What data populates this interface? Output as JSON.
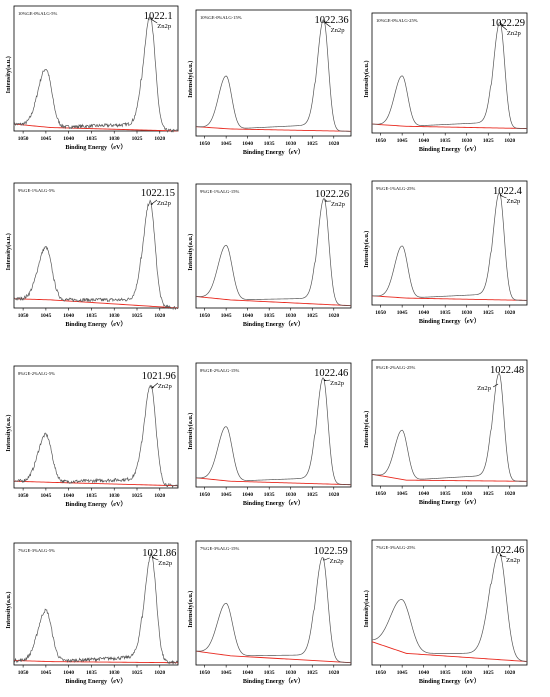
{
  "chart_data": [
    {
      "type": "line",
      "title": "10%GE-0%ALG-5%",
      "xlabel": "Binding Energy（eV）",
      "ylabel": "Intensity(a.u.)",
      "xlim": [
        1052,
        1016
      ],
      "x_reversed": true,
      "x_ticks": [
        1050,
        1045,
        1040,
        1035,
        1030,
        1025,
        1020
      ],
      "peak_label": "Zn2p",
      "peak_value_label": "1022.1",
      "series": [
        {
          "peaks": [
            {
              "center": 1045,
              "height": 0.5,
              "width": 1.3
            },
            {
              "center": 1022.1,
              "height": 0.98,
              "width": 1.1
            }
          ],
          "baseline": [
            [
              1052,
              0.06
            ],
            [
              1044,
              0.03
            ],
            [
              1016,
              0.0
            ]
          ],
          "noise": 0.03
        }
      ],
      "line_colors": [
        "#555555",
        "#e8281e"
      ]
    },
    {
      "type": "line",
      "title": "10%GE-0%ALG-15%",
      "xlabel": "Binding Energy（eV）",
      "ylabel": "Intensity(a.u.)",
      "xlim": [
        1052,
        1016
      ],
      "x_reversed": true,
      "x_ticks": [
        1050,
        1045,
        1040,
        1035,
        1030,
        1025,
        1020
      ],
      "peak_label": "Zn2p",
      "peak_value_label": "1022.36",
      "series": [
        {
          "peaks": [
            {
              "center": 1045,
              "height": 0.45,
              "width": 1.3
            },
            {
              "center": 1022.36,
              "height": 0.95,
              "width": 1.1
            }
          ],
          "baseline": [
            [
              1052,
              0.08
            ],
            [
              1044,
              0.06
            ],
            [
              1016,
              0.04
            ]
          ],
          "noise": 0.0
        }
      ],
      "line_colors": [
        "#555555",
        "#e8281e"
      ]
    },
    {
      "type": "line",
      "title": "10%GE-0%ALG-25%",
      "xlabel": "Binding Energy（eV）",
      "ylabel": "Intensity(a.u.)",
      "xlim": [
        1052,
        1016
      ],
      "x_reversed": true,
      "x_ticks": [
        1050,
        1045,
        1040,
        1035,
        1030,
        1025,
        1020
      ],
      "peak_label": "Zn2p",
      "peak_value_label": "1022.29",
      "series": [
        {
          "peaks": [
            {
              "center": 1045,
              "height": 0.45,
              "width": 1.3
            },
            {
              "center": 1022.29,
              "height": 0.95,
              "width": 1.1
            }
          ],
          "baseline": [
            [
              1052,
              0.08
            ],
            [
              1044,
              0.06
            ],
            [
              1016,
              0.04
            ]
          ],
          "noise": 0.0
        }
      ],
      "line_colors": [
        "#555555",
        "#e8281e"
      ]
    },
    {
      "type": "line",
      "title": "9%GE-1%ALG-5%",
      "xlabel": "Binding Energy（eV）",
      "ylabel": "Intensity(a.u.)",
      "xlim": [
        1052,
        1016
      ],
      "x_reversed": true,
      "x_ticks": [
        1050,
        1045,
        1040,
        1035,
        1030,
        1025,
        1020
      ],
      "peak_label": "Zn2p",
      "peak_value_label": "1022.15",
      "series": [
        {
          "peaks": [
            {
              "center": 1045,
              "height": 0.45,
              "width": 1.3
            },
            {
              "center": 1022.15,
              "height": 0.9,
              "width": 1.1
            }
          ],
          "baseline": [
            [
              1052,
              0.08
            ],
            [
              1044,
              0.07
            ],
            [
              1016,
              0.0
            ]
          ],
          "noise": 0.03
        }
      ],
      "line_colors": [
        "#555555",
        "#e8281e"
      ]
    },
    {
      "type": "line",
      "title": "9%GE-1%ALG-15%",
      "xlabel": "Binding Energy（eV）",
      "ylabel": "Intensity(a.u.)",
      "xlim": [
        1052,
        1016
      ],
      "x_reversed": true,
      "x_ticks": [
        1050,
        1045,
        1040,
        1035,
        1030,
        1025,
        1020
      ],
      "peak_label": "Zn2p",
      "peak_value_label": "1022.26",
      "series": [
        {
          "peaks": [
            {
              "center": 1045,
              "height": 0.47,
              "width": 1.4
            },
            {
              "center": 1022.26,
              "height": 0.92,
              "width": 1.1
            }
          ],
          "baseline": [
            [
              1052,
              0.1
            ],
            [
              1044,
              0.07
            ],
            [
              1016,
              0.02
            ]
          ],
          "noise": 0.0
        }
      ],
      "line_colors": [
        "#555555",
        "#e8281e"
      ]
    },
    {
      "type": "line",
      "title": "9%GE-1%ALG-25%",
      "xlabel": "Binding Energy（eV）",
      "ylabel": "Intensity(a.u.)",
      "xlim": [
        1052,
        1016
      ],
      "x_reversed": true,
      "x_ticks": [
        1050,
        1045,
        1040,
        1035,
        1030,
        1025,
        1020
      ],
      "peak_label": "Zn2p",
      "peak_value_label": "1022.4",
      "series": [
        {
          "peaks": [
            {
              "center": 1045,
              "height": 0.45,
              "width": 1.3
            },
            {
              "center": 1022.4,
              "height": 0.93,
              "width": 1.1
            }
          ],
          "baseline": [
            [
              1052,
              0.08
            ],
            [
              1044,
              0.06
            ],
            [
              1016,
              0.04
            ]
          ],
          "noise": 0.0
        }
      ],
      "line_colors": [
        "#555555",
        "#e8281e"
      ]
    },
    {
      "type": "line",
      "title": "8%GE-2%ALG-5%",
      "xlabel": "Binding Energy（eV）",
      "ylabel": "Intensity(a.u.)",
      "xlim": [
        1052,
        1016
      ],
      "x_reversed": true,
      "x_ticks": [
        1050,
        1045,
        1040,
        1035,
        1030,
        1025,
        1020
      ],
      "peak_label": "Zn2p",
      "peak_value_label": "1021.96",
      "series": [
        {
          "peaks": [
            {
              "center": 1045,
              "height": 0.42,
              "width": 1.3
            },
            {
              "center": 1021.96,
              "height": 0.88,
              "width": 1.1
            }
          ],
          "baseline": [
            [
              1052,
              0.06
            ],
            [
              1044,
              0.05
            ],
            [
              1016,
              0.02
            ]
          ],
          "noise": 0.03
        }
      ],
      "line_colors": [
        "#555555",
        "#e8281e"
      ]
    },
    {
      "type": "line",
      "title": "8%GE-2%ALG-15%",
      "xlabel": "Binding Energy（eV）",
      "ylabel": "Intensity(a.u.)",
      "xlim": [
        1052,
        1016
      ],
      "x_reversed": true,
      "x_ticks": [
        1050,
        1045,
        1040,
        1035,
        1030,
        1025,
        1020
      ],
      "peak_label": "Zn2p",
      "peak_value_label": "1022.46",
      "series": [
        {
          "peaks": [
            {
              "center": 1045,
              "height": 0.47,
              "width": 1.4
            },
            {
              "center": 1022.46,
              "height": 0.92,
              "width": 1.1
            }
          ],
          "baseline": [
            [
              1052,
              0.08
            ],
            [
              1044,
              0.05
            ],
            [
              1016,
              0.02
            ]
          ],
          "noise": 0.0
        }
      ],
      "line_colors": [
        "#555555",
        "#e8281e"
      ]
    },
    {
      "type": "line",
      "title": "8%GE-2%ALG-25%",
      "xlabel": "Binding Energy（eV）",
      "ylabel": "Intensity(a.u.)",
      "xlim": [
        1052,
        1016
      ],
      "x_reversed": true,
      "x_ticks": [
        1050,
        1045,
        1040,
        1035,
        1030,
        1025,
        1020
      ],
      "peak_label": "Zn2p",
      "peak_value_label": "1022.48",
      "series": [
        {
          "peaks": [
            {
              "center": 1045,
              "height": 0.42,
              "width": 1.3
            },
            {
              "center": 1022.48,
              "height": 0.92,
              "width": 1.1
            }
          ],
          "baseline": [
            [
              1052,
              0.1
            ],
            [
              1044,
              0.05
            ],
            [
              1016,
              0.04
            ]
          ],
          "noise": 0.0
        }
      ],
      "line_colors": [
        "#555555",
        "#e8281e"
      ]
    },
    {
      "type": "line",
      "title": "7%GE-3%ALG-5%",
      "xlabel": "Binding Energy（eV）",
      "ylabel": "Intensity(a.u.)",
      "xlim": [
        1052,
        1016
      ],
      "x_reversed": true,
      "x_ticks": [
        1050,
        1045,
        1040,
        1035,
        1030,
        1025,
        1020
      ],
      "peak_label": "Zn2p",
      "peak_value_label": "1021.86",
      "series": [
        {
          "peaks": [
            {
              "center": 1045,
              "height": 0.45,
              "width": 1.3
            },
            {
              "center": 1021.86,
              "height": 0.95,
              "width": 1.1
            }
          ],
          "baseline": [
            [
              1052,
              0.04
            ],
            [
              1044,
              0.03
            ],
            [
              1016,
              0.02
            ]
          ],
          "noise": 0.03
        }
      ],
      "line_colors": [
        "#555555",
        "#e8281e"
      ]
    },
    {
      "type": "line",
      "title": "7%GE-3%ALG-15%",
      "xlabel": "Binding Energy（eV）",
      "ylabel": "Intensity(a.u.)",
      "xlim": [
        1052,
        1016
      ],
      "x_reversed": true,
      "x_ticks": [
        1050,
        1045,
        1040,
        1035,
        1030,
        1025,
        1020
      ],
      "peak_label": "Zn2p",
      "peak_value_label": "1022.59",
      "series": [
        {
          "peaks": [
            {
              "center": 1045,
              "height": 0.45,
              "width": 1.5
            },
            {
              "center": 1022.59,
              "height": 0.9,
              "width": 1.2
            }
          ],
          "baseline": [
            [
              1052,
              0.12
            ],
            [
              1044,
              0.08
            ],
            [
              1016,
              0.02
            ]
          ],
          "noise": 0.0
        }
      ],
      "line_colors": [
        "#555555",
        "#e8281e"
      ]
    },
    {
      "type": "line",
      "title": "7%GE-3%ALG-25%",
      "xlabel": "Binding Energy（eV）",
      "ylabel": "Intensity(a.u.)",
      "xlim": [
        1052,
        1016
      ],
      "x_reversed": true,
      "x_ticks": [
        1050,
        1045,
        1040,
        1035,
        1030,
        1025,
        1020
      ],
      "peak_label": "Zn2p",
      "peak_value_label": "1022.46",
      "series": [
        {
          "peaks": [
            {
              "center": 1045,
              "height": 0.45,
              "width": 2.0
            },
            {
              "center": 1022.46,
              "height": 0.92,
              "width": 1.6
            }
          ],
          "baseline": [
            [
              1052,
              0.2
            ],
            [
              1044,
              0.1
            ],
            [
              1016,
              0.03
            ]
          ],
          "noise": 0.0
        }
      ],
      "line_colors": [
        "#555555",
        "#e8281e"
      ]
    }
  ]
}
